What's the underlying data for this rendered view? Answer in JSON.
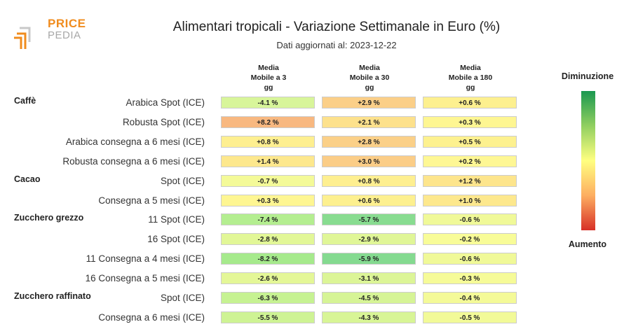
{
  "brand": {
    "line1": "PRICE",
    "line2": "PEDIA"
  },
  "header": {
    "title": "Alimentari tropicali - Variazione Settimanale in Euro (%)",
    "subtitle": "Dati aggiornati al: 2023-12-22"
  },
  "columns": [
    [
      "Media",
      "Mobile a 3",
      "gg"
    ],
    [
      "Media",
      "Mobile a 30",
      "gg"
    ],
    [
      "Media",
      "Mobile a 180",
      "gg"
    ]
  ],
  "legend": {
    "top_label": "Diminuzione",
    "bottom_label": "Aumento"
  },
  "chart_data": {
    "type": "heatmap",
    "title": "Alimentari tropicali - Variazione Settimanale in Euro (%)",
    "columns": [
      "Media Mobile a 3 gg",
      "Media Mobile a 30 gg",
      "Media Mobile a 180 gg"
    ],
    "groups": [
      {
        "name": "Caffè",
        "rows": [
          {
            "label": "Arabica Spot (ICE)",
            "values": [
              "-4.1 %",
              "+2.9 %",
              "+0.6 %"
            ],
            "colors": [
              "#d8f59a",
              "#fbcf88",
              "#fdf08f"
            ]
          },
          {
            "label": "Robusta Spot (ICE)",
            "values": [
              "+8.2 %",
              "+2.1 %",
              "+0.3 %"
            ],
            "colors": [
              "#f8b880",
              "#fde18c",
              "#fef692"
            ]
          },
          {
            "label": "Arabica consegna a 6 mesi (ICE)",
            "values": [
              "+0.8 %",
              "+2.8 %",
              "+0.5 %"
            ],
            "colors": [
              "#feef90",
              "#fbd088",
              "#fdf18f"
            ]
          },
          {
            "label": "Robusta consegna a 6 mesi (ICE)",
            "values": [
              "+1.4 %",
              "+3.0 %",
              "+0.2 %"
            ],
            "colors": [
              "#fde88d",
              "#fbcd87",
              "#fef794"
            ]
          }
        ]
      },
      {
        "name": "Cacao",
        "rows": [
          {
            "label": "Spot (ICE)",
            "values": [
              "-0.7 %",
              "+0.8 %",
              "+1.2 %"
            ],
            "colors": [
              "#f4fa98",
              "#feef90",
              "#fde58c"
            ]
          },
          {
            "label": "Consegna a 5 mesi (ICE)",
            "values": [
              "+0.3 %",
              "+0.6 %",
              "+1.0 %"
            ],
            "colors": [
              "#fef692",
              "#fdf08f",
              "#fde88d"
            ]
          }
        ]
      },
      {
        "name": "Zucchero grezzo",
        "rows": [
          {
            "label": "11 Spot (ICE)",
            "values": [
              "-7.4 %",
              "-5.7 %",
              "-0.6 %"
            ],
            "colors": [
              "#b4ee90",
              "#88dc90",
              "#f0f998"
            ]
          },
          {
            "label": "16 Spot (ICE)",
            "values": [
              "-2.8 %",
              "-2.9 %",
              "-0.2 %"
            ],
            "colors": [
              "#e2f797",
              "#e0f697",
              "#f8fc98"
            ]
          },
          {
            "label": "11 Consegna a 4 mesi (ICE)",
            "values": [
              "-8.2 %",
              "-5.9 %",
              "-0.6 %"
            ],
            "colors": [
              "#a6ea8c",
              "#84da90",
              "#f0f998"
            ]
          },
          {
            "label": "16 Consegna a 5 mesi (ICE)",
            "values": [
              "-2.6 %",
              "-3.1 %",
              "-0.3 %"
            ],
            "colors": [
              "#e4f797",
              "#dcf597",
              "#f6fb98"
            ]
          }
        ]
      },
      {
        "name": "Zucchero raffinato",
        "rows": [
          {
            "label": "Spot (ICE)",
            "values": [
              "-6.3 %",
              "-4.5 %",
              "-0.4 %"
            ],
            "colors": [
              "#c6f292",
              "#d6f496",
              "#f4fa98"
            ]
          },
          {
            "label": "Consegna a 6 mesi (ICE)",
            "values": [
              "-5.5 %",
              "-4.3 %",
              "-0.5 %"
            ],
            "colors": [
              "#cef394",
              "#d8f596",
              "#f2fa98"
            ]
          }
        ]
      }
    ],
    "legend": {
      "orientation": "vertical",
      "placement": "right",
      "top": "Diminuzione",
      "bottom": "Aumento",
      "colors": [
        "#1a9850",
        "#91cf60",
        "#ffff80",
        "#fdae61",
        "#d73027"
      ]
    }
  }
}
